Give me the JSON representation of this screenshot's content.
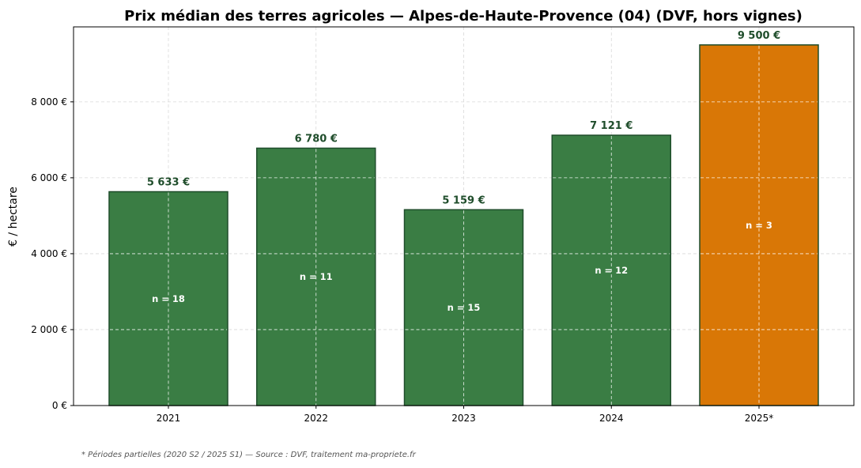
{
  "chart_data": {
    "type": "bar",
    "title": "Prix médian des terres agricoles — Alpes-de-Haute-Provence (04) (DVF, hors vignes)",
    "xlabel": "",
    "ylabel": "€ / hectare",
    "categories": [
      "2021",
      "2022",
      "2023",
      "2024",
      "2025*"
    ],
    "values": [
      5633,
      6780,
      5159,
      7121,
      9500
    ],
    "value_labels": [
      "5 633 €",
      "6 780 €",
      "5 159 €",
      "7 121 €",
      "9 500 €"
    ],
    "counts": [
      "n = 18",
      "n = 11",
      "n = 15",
      "n = 12",
      "n = 3"
    ],
    "bar_colors": [
      "#3a7d44",
      "#3a7d44",
      "#3a7d44",
      "#3a7d44",
      "#d97706"
    ],
    "bar_edge_color": "#1f4d2b",
    "value_label_color": "#1f4d2b",
    "ylim": [
      0,
      9975
    ],
    "yticks": [
      0,
      2000,
      4000,
      6000,
      8000
    ],
    "ytick_labels": [
      "0 €",
      "2 000 €",
      "4 000 €",
      "6 000 €",
      "8 000 €"
    ],
    "grid": true
  },
  "footnote": "* Périodes partielles (2020 S2 / 2025 S1) — Source : DVF, traitement ma-propriete.fr"
}
